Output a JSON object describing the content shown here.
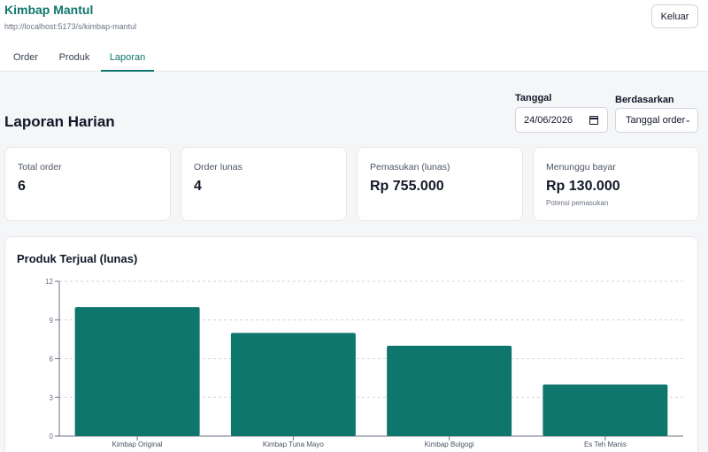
{
  "app": {
    "title": "Kimbap Mantul",
    "url": "http://localhost:5173/s/kimbap-mantul",
    "logout_label": "Keluar"
  },
  "tabs": [
    {
      "label": "Order",
      "active": false
    },
    {
      "label": "Produk",
      "active": false
    },
    {
      "label": "Laporan",
      "active": true
    }
  ],
  "page": {
    "heading": "Laporan Harian"
  },
  "filters": {
    "date_label": "Tanggal",
    "date_value": "24/06/2026",
    "basis_label": "Berdasarkan",
    "basis_value": "Tanggal order"
  },
  "stats": [
    {
      "label": "Total order",
      "value": "6",
      "hint": ""
    },
    {
      "label": "Order lunas",
      "value": "4",
      "hint": ""
    },
    {
      "label": "Pemasukan (lunas)",
      "value": "Rp 755.000",
      "hint": ""
    },
    {
      "label": "Menunggu bayar",
      "value": "Rp 130.000",
      "hint": "Potensi pemasukan"
    }
  ],
  "chart": {
    "title": "Produk Terjual (lunas)"
  },
  "chart_data": {
    "type": "bar",
    "title": "Produk Terjual (lunas)",
    "categories": [
      "Kimbap Original",
      "Kimbap Tuna Mayo",
      "Kimbap Bulgogi",
      "Es Teh Manis"
    ],
    "values": [
      10,
      8,
      7,
      4
    ],
    "yticks": [
      0,
      3,
      6,
      9,
      12
    ],
    "ylim": [
      0,
      12
    ],
    "grid": true,
    "bar_color": "#0f766e"
  },
  "colors": {
    "accent": "#0f766e"
  }
}
